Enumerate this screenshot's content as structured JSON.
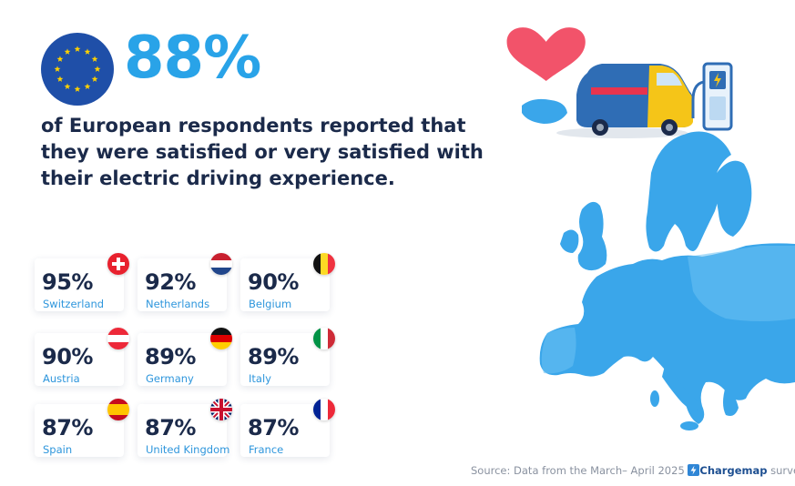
{
  "headline": {
    "value": "88%"
  },
  "subtext": "of European respondents reported that they were satisfied or very satisfied with their electric driving experience.",
  "countries": [
    {
      "pct": "95%",
      "name": "Switzerland",
      "flag": "switzerland-flag-icon"
    },
    {
      "pct": "92%",
      "name": "Netherlands",
      "flag": "netherlands-flag-icon"
    },
    {
      "pct": "90%",
      "name": "Belgium",
      "flag": "belgium-flag-icon"
    },
    {
      "pct": "90%",
      "name": "Austria",
      "flag": "austria-flag-icon"
    },
    {
      "pct": "89%",
      "name": "Germany",
      "flag": "germany-flag-icon"
    },
    {
      "pct": "89%",
      "name": "Italy",
      "flag": "italy-flag-icon"
    },
    {
      "pct": "87%",
      "name": "Spain",
      "flag": "spain-flag-icon"
    },
    {
      "pct": "87%",
      "name": "United Kingdom",
      "flag": "uk-flag-icon"
    },
    {
      "pct": "87%",
      "name": "France",
      "flag": "france-flag-icon"
    }
  ],
  "source": {
    "prefix": "Source: Data from the March– April 2025",
    "brand": "Chargemap",
    "suffix": "survey"
  },
  "colors": {
    "accent": "#29a3e8",
    "text_dark": "#1b2a4a",
    "country_label": "#2e96dc",
    "map_blue": "#3aa6ea",
    "heart": "#f2536a",
    "eu_blue": "#1f4fa8",
    "eu_star": "#ffd200"
  }
}
